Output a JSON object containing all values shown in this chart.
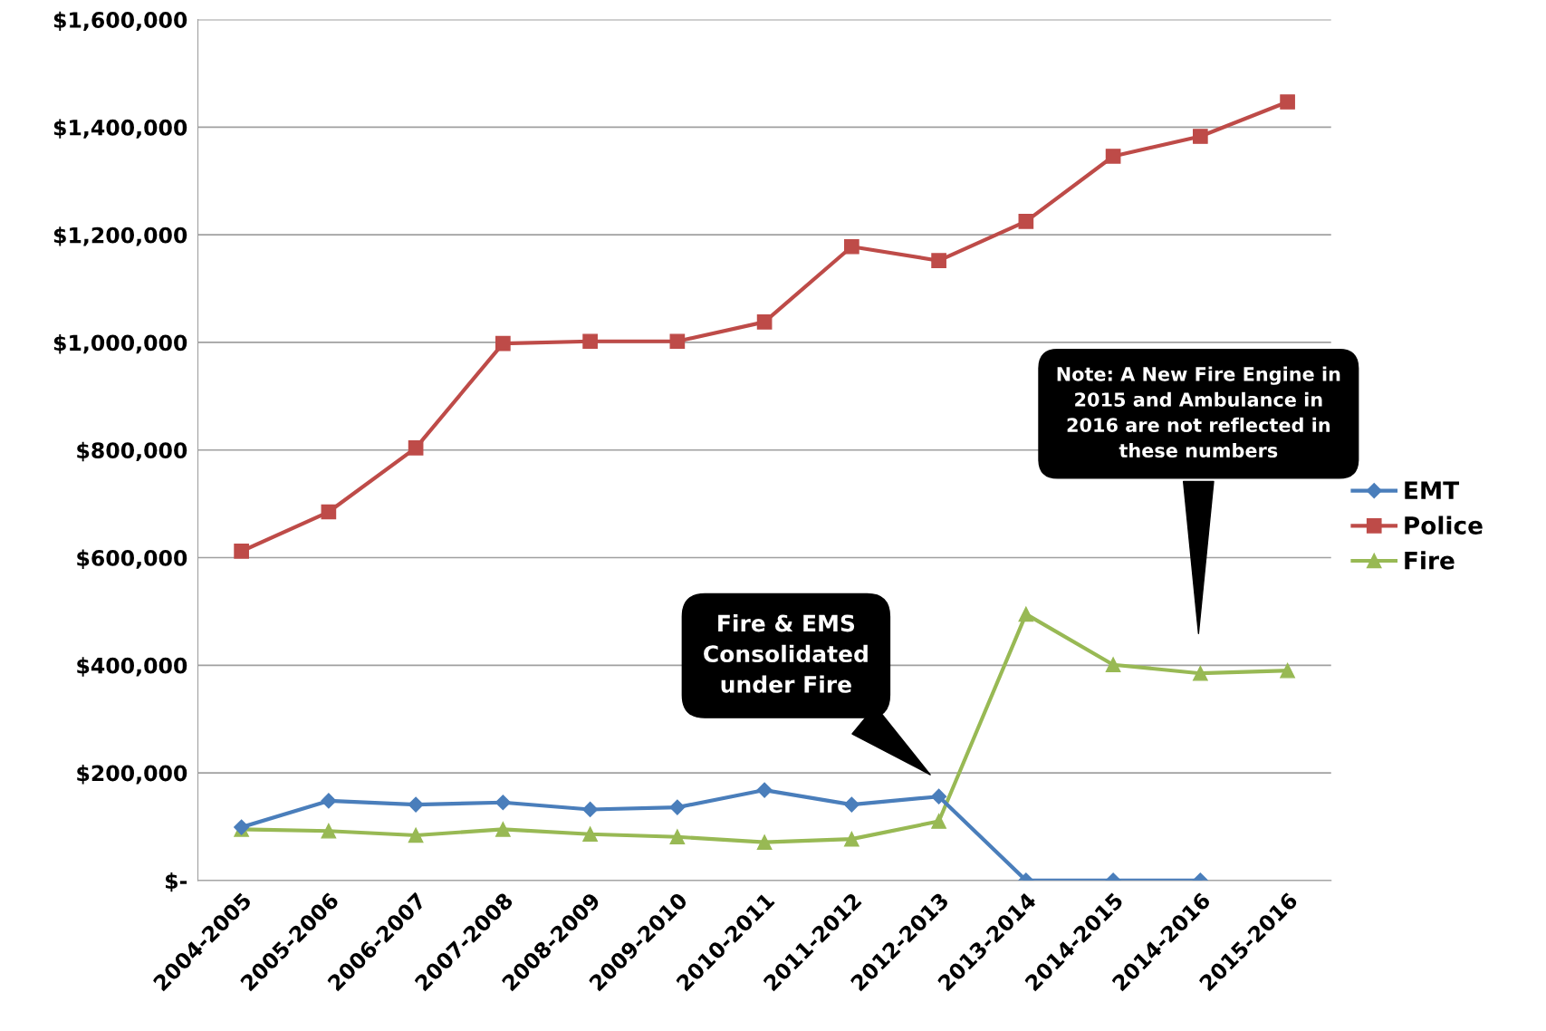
{
  "chart_data": {
    "type": "line",
    "categories": [
      "2004-2005",
      "2005-2006",
      "2006-2007",
      "2007-2008",
      "2008-2009",
      "2009-2010",
      "2010-2011",
      "2011-2012",
      "2012-2013",
      "2013-2014",
      "2014-2015",
      "2014-2016",
      "2015-2016"
    ],
    "series": [
      {
        "name": "EMT",
        "color": "#4a7ebb",
        "marker": "diamond",
        "values": [
          99000,
          148000,
          141000,
          145000,
          132000,
          136000,
          168000,
          141000,
          156000,
          0,
          0,
          0,
          null
        ]
      },
      {
        "name": "Police",
        "color": "#be4b48",
        "marker": "square",
        "values": [
          612000,
          685000,
          804000,
          998000,
          1002000,
          1002000,
          1038000,
          1178000,
          1152000,
          1225000,
          1346000,
          1383000,
          1447000
        ]
      },
      {
        "name": "Fire",
        "color": "#98b954",
        "marker": "triangle",
        "values": [
          95000,
          92000,
          84000,
          95000,
          86000,
          81000,
          71000,
          77000,
          110000,
          495000,
          401000,
          385000,
          390000
        ]
      }
    ],
    "ylim": [
      0,
      1600000
    ],
    "yticks": [
      {
        "value": 0,
        "label": "$-"
      },
      {
        "value": 200000,
        "label": "$200,000"
      },
      {
        "value": 400000,
        "label": "$400,000"
      },
      {
        "value": 600000,
        "label": "$600,000"
      },
      {
        "value": 800000,
        "label": "$800,000"
      },
      {
        "value": 1000000,
        "label": "$1,000,000"
      },
      {
        "value": 1200000,
        "label": "$1,200,000"
      },
      {
        "value": 1400000,
        "label": "$1,400,000"
      },
      {
        "value": 1600000,
        "label": "$1,600,000"
      }
    ],
    "grid": "y",
    "legend": "right",
    "annotations": [
      "Fire & EMS\nConsolidated\nunder Fire",
      "Note: A New Fire Engine in\n2015 and Ambulance in\n2016 are not reflected in\nthese numbers"
    ]
  }
}
